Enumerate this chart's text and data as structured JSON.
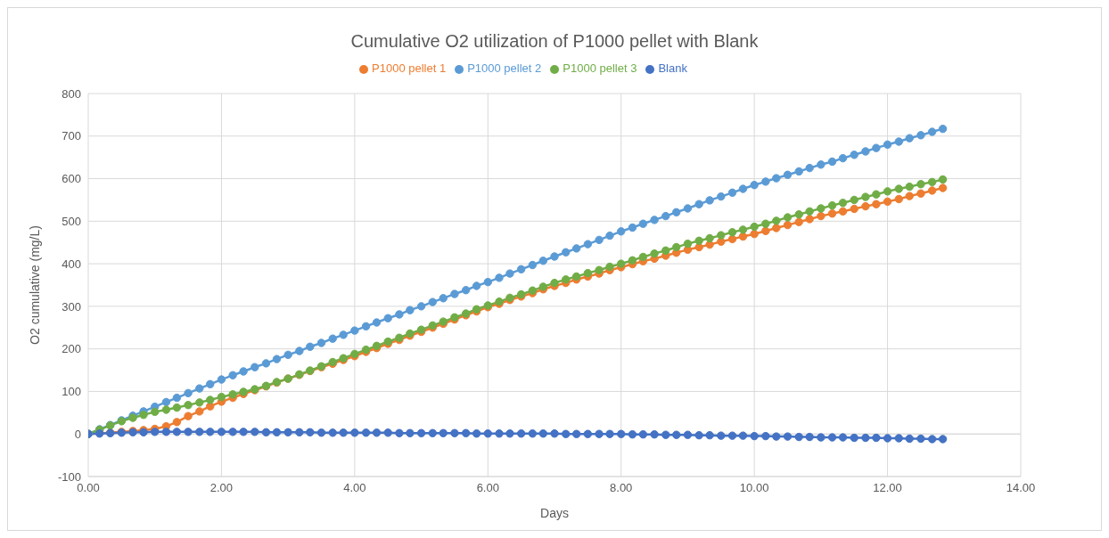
{
  "chart_data": {
    "type": "line",
    "title": "Cumulative O2 utilization of P1000 pellet with Blank",
    "xlabel": "Days",
    "ylabel": "O2 cumulative (mg/L)",
    "x": [
      0,
      0.17,
      0.33,
      0.5,
      0.67,
      0.83,
      1,
      1.17,
      1.33,
      1.5,
      1.67,
      1.83,
      2,
      2.17,
      2.33,
      2.5,
      2.67,
      2.83,
      3,
      3.17,
      3.33,
      3.5,
      3.67,
      3.83,
      4,
      4.17,
      4.33,
      4.5,
      4.67,
      4.83,
      5,
      5.17,
      5.33,
      5.5,
      5.67,
      5.83,
      6,
      6.17,
      6.33,
      6.5,
      6.67,
      6.83,
      7,
      7.17,
      7.33,
      7.5,
      7.67,
      7.83,
      8,
      8.17,
      8.33,
      8.5,
      8.67,
      8.83,
      9,
      9.17,
      9.33,
      9.5,
      9.67,
      9.83,
      10,
      10.17,
      10.33,
      10.5,
      10.67,
      10.83,
      11,
      11.17,
      11.33,
      11.5,
      11.67,
      11.83,
      12,
      12.17,
      12.33,
      12.5,
      12.67,
      12.83
    ],
    "series": [
      {
        "name": "P1000 pellet 1",
        "color": "#ed7d31",
        "values": [
          0,
          null,
          3,
          5,
          7,
          9,
          12,
          18,
          28,
          42,
          53,
          65,
          76,
          85,
          94,
          103,
          112,
          121,
          130,
          139,
          148,
          157,
          165,
          174,
          183,
          193,
          202,
          212,
          221,
          231,
          240,
          250,
          259,
          269,
          279,
          288,
          298,
          306,
          315,
          323,
          331,
          340,
          348,
          355,
          363,
          370,
          377,
          385,
          392,
          399,
          406,
          412,
          419,
          426,
          433,
          439,
          445,
          452,
          458,
          464,
          470,
          477,
          484,
          491,
          498,
          505,
          512,
          518,
          523,
          529,
          535,
          540,
          546,
          552,
          559,
          565,
          572,
          578
        ]
      },
      {
        "name": "P1000 pellet 2",
        "color": "#5b9bd5",
        "values": [
          0,
          11,
          21,
          32,
          43,
          53,
          64,
          75,
          85,
          96,
          107,
          117,
          128,
          138,
          147,
          157,
          166,
          176,
          186,
          195,
          205,
          214,
          224,
          233,
          243,
          253,
          262,
          272,
          281,
          291,
          300,
          310,
          319,
          329,
          338,
          348,
          357,
          367,
          377,
          387,
          397,
          407,
          417,
          427,
          436,
          446,
          456,
          466,
          476,
          485,
          494,
          503,
          512,
          521,
          530,
          540,
          549,
          558,
          567,
          576,
          585,
          593,
          601,
          609,
          617,
          625,
          633,
          640,
          648,
          656,
          664,
          672,
          680,
          687,
          695,
          702,
          710,
          717
        ]
      },
      {
        "name": "P1000 pellet 3",
        "color": "#70ad47",
        "values": [
          0,
          10,
          20,
          30,
          38,
          45,
          52,
          57,
          62,
          68,
          74,
          80,
          87,
          93,
          99,
          105,
          113,
          122,
          130,
          140,
          149,
          159,
          169,
          178,
          188,
          198,
          207,
          217,
          226,
          236,
          245,
          255,
          264,
          274,
          283,
          293,
          302,
          311,
          320,
          328,
          337,
          346,
          355,
          363,
          370,
          378,
          385,
          393,
          400,
          408,
          416,
          424,
          431,
          439,
          447,
          454,
          460,
          467,
          474,
          480,
          487,
          494,
          501,
          509,
          516,
          523,
          530,
          537,
          543,
          550,
          557,
          563,
          570,
          576,
          581,
          587,
          592,
          598
        ]
      },
      {
        "name": "Blank",
        "color": "#4472c4",
        "values": [
          0,
          1,
          2,
          3,
          4,
          4,
          5,
          5,
          5,
          5,
          5,
          5,
          5,
          5,
          5,
          5,
          4,
          4,
          4,
          4,
          4,
          3,
          3,
          3,
          3,
          3,
          3,
          3,
          2,
          2,
          2,
          2,
          2,
          2,
          2,
          1,
          1,
          1,
          1,
          1,
          1,
          1,
          1,
          0,
          0,
          0,
          0,
          0,
          0,
          -1,
          -1,
          -1,
          -2,
          -2,
          -2,
          -3,
          -3,
          -4,
          -4,
          -4,
          -5,
          -5,
          -6,
          -6,
          -7,
          -7,
          -8,
          -8,
          -8,
          -9,
          -9,
          -9,
          -10,
          -10,
          -11,
          -11,
          -12,
          -12
        ]
      }
    ],
    "xlim": [
      0,
      14
    ],
    "xticks": [
      {
        "value": 0,
        "label": "0.00"
      },
      {
        "value": 2,
        "label": "2.00"
      },
      {
        "value": 4,
        "label": "4.00"
      },
      {
        "value": 6,
        "label": "6.00"
      },
      {
        "value": 8,
        "label": "8.00"
      },
      {
        "value": 10,
        "label": "10.00"
      },
      {
        "value": 12,
        "label": "12.00"
      },
      {
        "value": 14,
        "label": "14.00"
      }
    ],
    "ylim": [
      -100,
      800
    ],
    "yticks": [
      -100,
      0,
      100,
      200,
      300,
      400,
      500,
      600,
      700,
      800
    ],
    "grid": true,
    "legend": "top",
    "marker": "circle",
    "line_style": "solid"
  }
}
